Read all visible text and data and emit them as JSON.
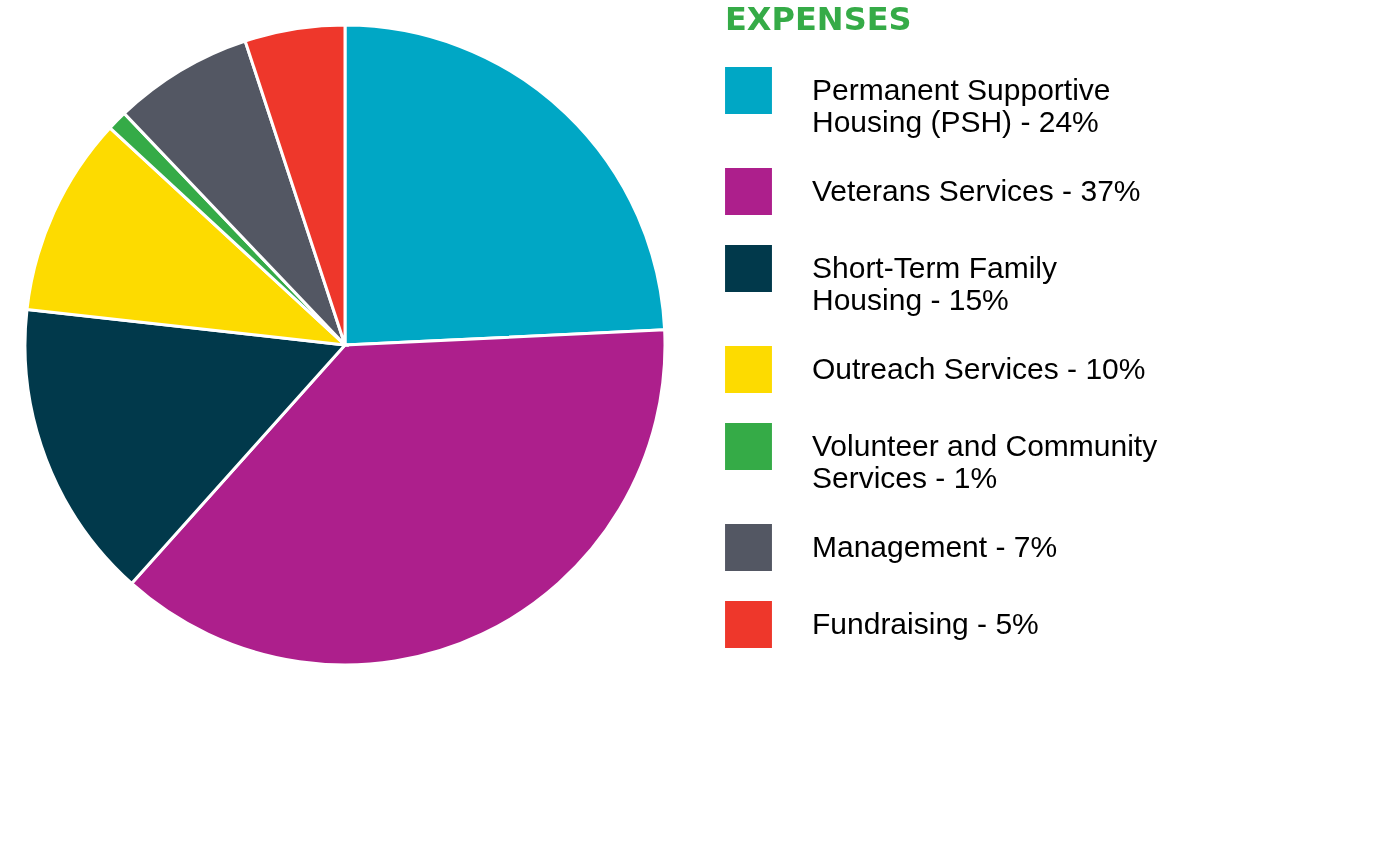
{
  "chart_data": {
    "type": "pie",
    "legend_title": "EXPENSES",
    "categories": [
      "Permanent Supportive Housing (PSH) - 24%",
      "Veterans Services - 37%",
      "Short-Term Family Housing - 15%",
      "Outreach Services - 10%",
      "Volunteer and Community Services - 1%",
      "Management - 7%",
      "Fundraising - 5%"
    ],
    "values": [
      24,
      37,
      15,
      10,
      1,
      7,
      5
    ],
    "colors": [
      "#00a7c5",
      "#ad1f8c",
      "#01394b",
      "#fddb00",
      "#35ab47",
      "#535763",
      "#ee372b"
    ],
    "legend": "right"
  }
}
